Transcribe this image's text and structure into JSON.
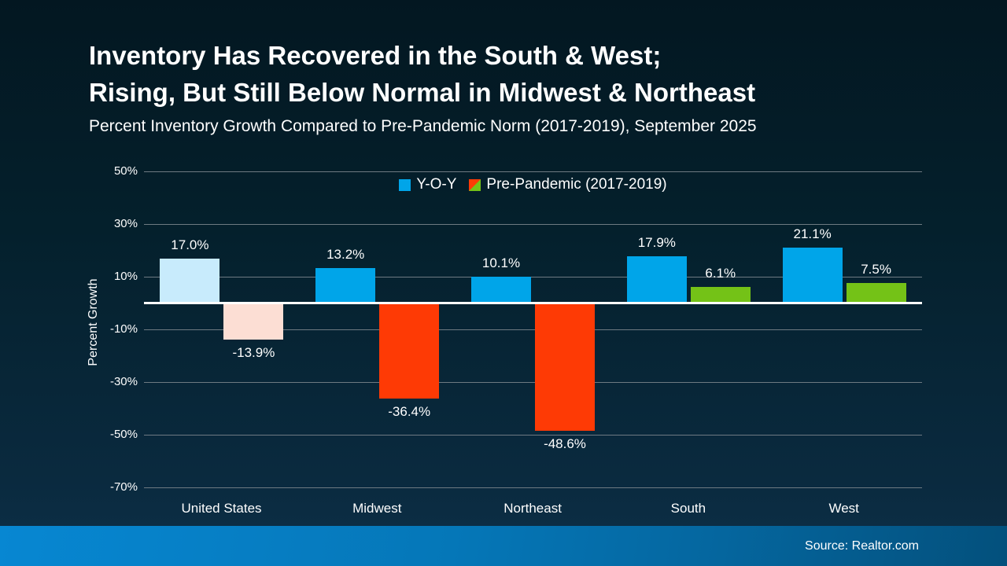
{
  "slide": {
    "title_lines": [
      "Inventory Has Recovered in the South & West;",
      "Rising, But Still Below Normal in Midwest & Northeast"
    ],
    "subtitle": "Percent Inventory Growth Compared to Pre-Pandemic Norm (2017-2019), September 2025",
    "footer_source": "Source: Realtor.com"
  },
  "legend": {
    "items": [
      {
        "label": "Y-O-Y",
        "swatch": "solid",
        "color": "#00a5e9"
      },
      {
        "label": "Pre-Pandemic (2017-2019)",
        "swatch": "split",
        "color_negative": "#fe3a05",
        "color_positive": "#74c217"
      }
    ]
  },
  "chart_data": {
    "type": "bar",
    "title": "Inventory Has Recovered in the South & West; Rising, But Still Below Normal in Midwest & Northeast",
    "subtitle": "Percent Inventory Growth Compared to Pre-Pandemic Norm (2017-2019), September 2025",
    "categories": [
      "United States",
      "Midwest",
      "Northeast",
      "South",
      "West"
    ],
    "series": [
      {
        "name": "Y-O-Y",
        "values": [
          17.0,
          13.2,
          10.1,
          17.9,
          21.1
        ],
        "labels": [
          "17.0%",
          "13.2%",
          "10.1%",
          "17.9%",
          "21.1%"
        ],
        "colors": [
          "#c8ebfc",
          "#00a5e9",
          "#00a5e9",
          "#00a5e9",
          "#00a5e9"
        ]
      },
      {
        "name": "Pre-Pandemic (2017-2019)",
        "values": [
          -13.9,
          -36.4,
          -48.6,
          6.1,
          7.5
        ],
        "labels": [
          "-13.9%",
          "-36.4%",
          "-48.6%",
          "6.1%",
          "7.5%"
        ],
        "colors": [
          "#fcded4",
          "#fe3a05",
          "#fe3a05",
          "#74c217",
          "#74c217"
        ]
      }
    ],
    "ylabel": "Percent Growth",
    "xlabel": "",
    "ylim": [
      -70,
      50
    ],
    "yticks": [
      50,
      30,
      10,
      -10,
      -30,
      -50,
      -70
    ],
    "ytick_labels": [
      "50%",
      "30%",
      "10%",
      "-10%",
      "-30%",
      "-50%",
      "-70%"
    ],
    "grid": true,
    "zero_line": true,
    "legend_position": "top-center"
  },
  "colors": {
    "background_top": "#031721",
    "background_bottom": "#0d3048",
    "accent_blue": "#00a5e9",
    "negative_red": "#fe3a05",
    "positive_green": "#74c217",
    "muted_blue": "#c8ebfc",
    "muted_pink": "#fcded4",
    "gridline": "#6e7a82",
    "zero_line": "#ffffff",
    "footer_left": "#0787d2",
    "footer_right": "#03507c",
    "text": "#ffffff"
  }
}
